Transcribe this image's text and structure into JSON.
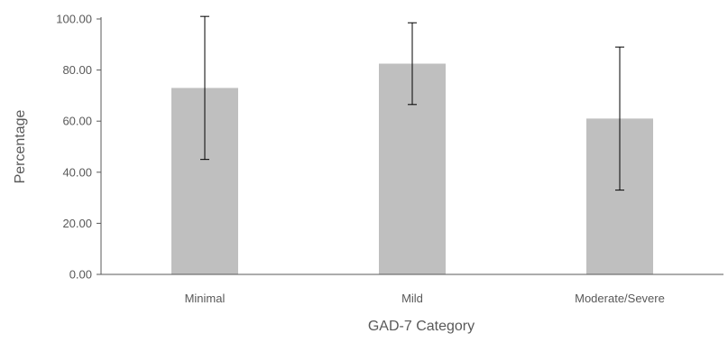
{
  "chart_data": {
    "type": "bar",
    "xlabel": "GAD-7 Category",
    "ylabel": "Percentage",
    "categories": [
      "Minimal",
      "Mild",
      "Moderate/Severe"
    ],
    "values": [
      73.0,
      82.5,
      61.0
    ],
    "error_high": [
      101.0,
      98.5,
      89.0
    ],
    "error_low": [
      45.0,
      66.5,
      33.0
    ],
    "ylim": [
      0,
      100
    ],
    "yticks": [
      "0.00",
      "20.00",
      "40.00",
      "60.00",
      "80.00",
      "100.00"
    ],
    "grid": false,
    "legend": "none",
    "bar_color": "#bfbfbf",
    "error_bar_color": "#000000",
    "axis_color": "#595959"
  }
}
